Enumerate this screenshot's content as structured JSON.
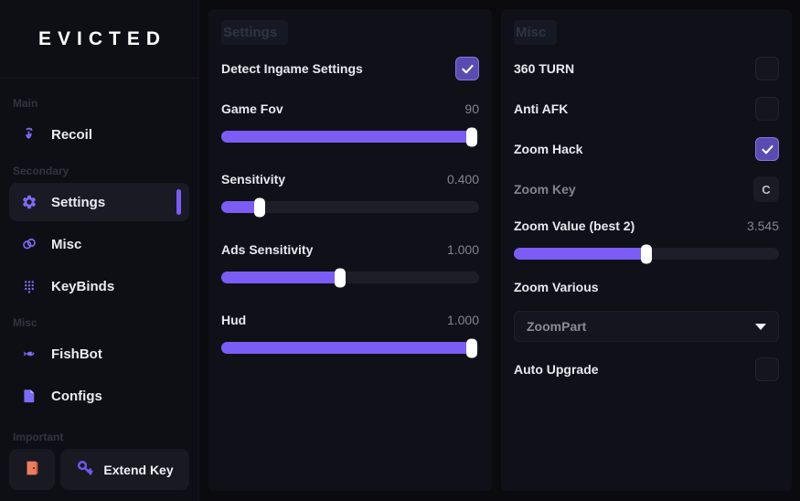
{
  "app": {
    "logo": "EVICTED"
  },
  "colors": {
    "accent_purple": "#7b5cf5",
    "checkbox_checked": "#584cb2",
    "panel_bg": "#101018",
    "sidebar_bg": "#0e0e15",
    "door_icon_orange": "#ed7d5e"
  },
  "sidebar": {
    "sections": {
      "main": {
        "label": "Main"
      },
      "secondary": {
        "label": "Secondary"
      },
      "misc": {
        "label": "Misc"
      },
      "important": {
        "label": "Important"
      }
    },
    "items": {
      "recoil": {
        "label": "Recoil"
      },
      "settings": {
        "label": "Settings"
      },
      "misc": {
        "label": "Misc"
      },
      "keybinds": {
        "label": "KeyBinds"
      },
      "fishbot": {
        "label": "FishBot"
      },
      "configs": {
        "label": "Configs"
      }
    },
    "footer": {
      "extend_key_label": "Extend Key"
    }
  },
  "settings_panel": {
    "title": "Settings",
    "detect_ingame": {
      "label": "Detect Ingame Settings",
      "checked": true
    },
    "sliders": [
      {
        "label": "Game Fov",
        "value": "90",
        "percent": 97
      },
      {
        "label": "Sensitivity",
        "value": "0.400",
        "percent": 15
      },
      {
        "label": "Ads Sensitivity",
        "value": "1.000",
        "percent": 46
      },
      {
        "label": "Hud",
        "value": "1.000",
        "percent": 97
      }
    ]
  },
  "misc_panel": {
    "title": "Misc",
    "toggles": [
      {
        "label": "360 TURN",
        "checked": false
      },
      {
        "label": "Anti AFK",
        "checked": false
      },
      {
        "label": "Zoom Hack",
        "checked": true
      }
    ],
    "zoom_key": {
      "label": "Zoom Key",
      "key": "C"
    },
    "zoom_value": {
      "label": "Zoom Value (best 2)",
      "value": "3.545",
      "percent": 50
    },
    "zoom_various": {
      "label": "Zoom Various",
      "selected": "ZoomPart"
    },
    "auto_upgrade": {
      "label": "Auto Upgrade",
      "checked": false
    }
  }
}
